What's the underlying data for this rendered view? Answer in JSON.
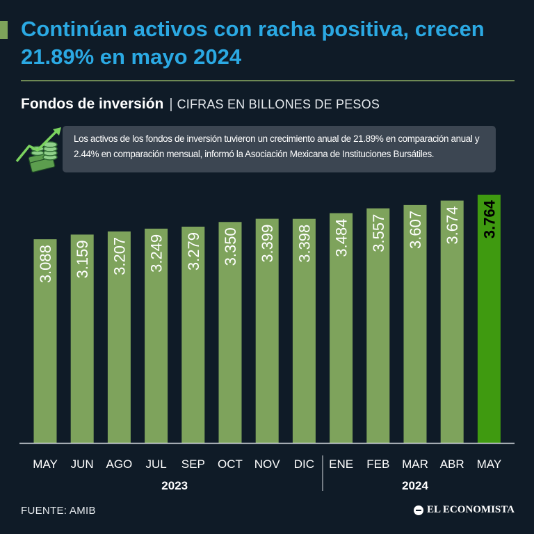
{
  "header": {
    "title": "Continúan activos con racha positiva, crecen 21.89% en mayo 2024"
  },
  "subtitle": {
    "main": "Fondos de inversión",
    "separator": "|",
    "units": "CIFRAS EN BILLONES DE PESOS"
  },
  "note": {
    "text": "Los activos de los fondos de inversión tuvieron un crecimiento anual de 21.89% en comparación anual y 2.44% en comparación mensual, informó la Asociación Mexicana de Instituciones Bursátiles."
  },
  "footer": {
    "source": "FUENTE: AMIB",
    "brand": "EL ECONOMISTA"
  },
  "colors": {
    "bar": "#7ea35c",
    "highlight_bar": "#3f9a10",
    "title": "#2ba9e3",
    "background": "#0f1b27"
  },
  "chart_data": {
    "type": "bar",
    "title": "Fondos de inversión",
    "ylabel": "CIFRAS EN BILLONES DE PESOS",
    "categories": [
      "MAY",
      "JUN",
      "AGO",
      "JUL",
      "SEP",
      "OCT",
      "NOV",
      "DIC",
      "ENE",
      "FEB",
      "MAR",
      "ABR",
      "MAY"
    ],
    "values": [
      3.088,
      3.159,
      3.207,
      3.249,
      3.279,
      3.35,
      3.399,
      3.398,
      3.484,
      3.557,
      3.607,
      3.674,
      3.764
    ],
    "labels": [
      "3.088",
      "3.159",
      "3.207",
      "3.249",
      "3.279",
      "3.350",
      "3.399",
      "3.398",
      "3.484",
      "3.557",
      "3.607",
      "3.674",
      "3.764"
    ],
    "highlight_index": 12,
    "groups": [
      {
        "label": "2023",
        "start": 0,
        "end": 7
      },
      {
        "label": "2024",
        "start": 8,
        "end": 12
      }
    ],
    "ylim": [
      0,
      3.764
    ]
  }
}
